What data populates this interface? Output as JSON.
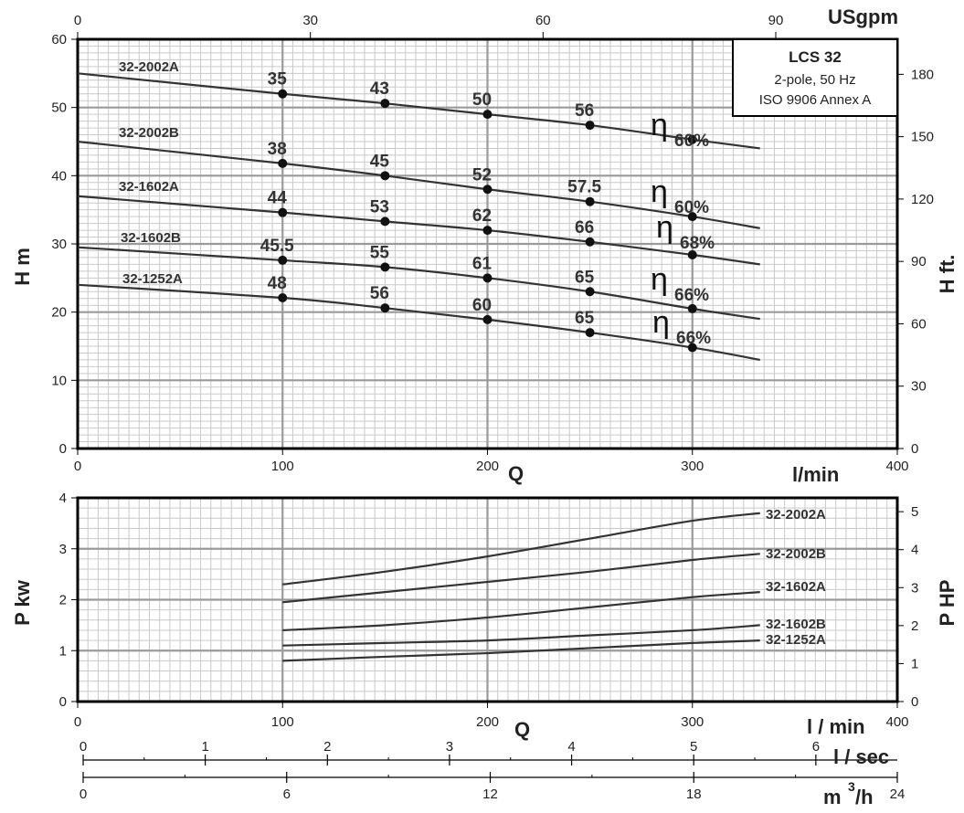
{
  "chart_data": [
    {
      "type": "line",
      "name": "head",
      "xlabel": "Q",
      "xunit": "l/min",
      "ylabel": "H m",
      "ylabel_right": "H ft.",
      "top_axis_unit": "USgpm",
      "xlim": [
        0,
        400
      ],
      "ylim": [
        0,
        60
      ],
      "x_ticks": [
        0,
        100,
        200,
        300,
        400
      ],
      "y_ticks": [
        0,
        10,
        20,
        30,
        40,
        50,
        60
      ],
      "top_ticks": [
        0,
        30,
        60,
        90
      ],
      "right_ticks": [
        0,
        30,
        60,
        90,
        120,
        150,
        180
      ],
      "grid": true,
      "legend": {
        "title": "LCS 32",
        "line1": "2-pole, 50 Hz",
        "line2": "ISO 9906 Annex A",
        "position": "top-right"
      },
      "series": [
        {
          "name": "32-2002A",
          "x": [
            0,
            100,
            150,
            200,
            250,
            300,
            333
          ],
          "y": [
            55,
            52,
            50.6,
            49,
            47.4,
            45.3,
            44
          ],
          "points": [
            [
              100,
              52,
              "35"
            ],
            [
              150,
              50.6,
              "43"
            ],
            [
              200,
              49,
              "50"
            ],
            [
              250,
              47.4,
              "56"
            ],
            [
              300,
              45.3,
              ""
            ]
          ],
          "eta": "60%"
        },
        {
          "name": "32-2002B",
          "x": [
            0,
            100,
            150,
            200,
            250,
            300,
            333
          ],
          "y": [
            45,
            41.8,
            40,
            38,
            36.2,
            34,
            32.3
          ],
          "points": [
            [
              100,
              41.8,
              "38"
            ],
            [
              150,
              40,
              "45"
            ],
            [
              200,
              38,
              "52"
            ],
            [
              250,
              36.2,
              "57.5"
            ],
            [
              300,
              34,
              ""
            ]
          ],
          "eta": "60%"
        },
        {
          "name": "32-1602A",
          "x": [
            0,
            100,
            150,
            200,
            250,
            300,
            333
          ],
          "y": [
            37,
            34.6,
            33.3,
            32,
            30.3,
            28.4,
            27
          ],
          "points": [
            [
              100,
              34.6,
              "44"
            ],
            [
              150,
              33.3,
              "53"
            ],
            [
              200,
              32,
              "62"
            ],
            [
              250,
              30.3,
              "66"
            ],
            [
              300,
              28.4,
              ""
            ]
          ],
          "eta": "68%"
        },
        {
          "name": "32-1602B",
          "x": [
            0,
            100,
            150,
            200,
            250,
            300,
            333
          ],
          "y": [
            29.5,
            27.6,
            26.6,
            25,
            23,
            20.5,
            19
          ],
          "points": [
            [
              100,
              27.6,
              "45.5"
            ],
            [
              150,
              26.6,
              "55"
            ],
            [
              200,
              25,
              "61"
            ],
            [
              250,
              23,
              "65"
            ],
            [
              300,
              20.5,
              ""
            ]
          ],
          "eta": "66%"
        },
        {
          "name": "32-1252A",
          "x": [
            0,
            100,
            150,
            200,
            250,
            300,
            333
          ],
          "y": [
            24,
            22.1,
            20.6,
            18.9,
            17,
            14.8,
            13
          ],
          "points": [
            [
              100,
              22.1,
              "48"
            ],
            [
              150,
              20.6,
              "56"
            ],
            [
              200,
              18.9,
              "60"
            ],
            [
              250,
              17,
              "65"
            ],
            [
              300,
              14.8,
              ""
            ]
          ],
          "eta": "66%"
        }
      ]
    },
    {
      "type": "line",
      "name": "power",
      "xlabel": "Q",
      "xunit": "l / min",
      "ylabel": "P kw",
      "ylabel_right": "P HP",
      "xlim": [
        0,
        400
      ],
      "ylim": [
        0,
        4
      ],
      "x_ticks": [
        0,
        100,
        200,
        300,
        400
      ],
      "y_ticks": [
        0,
        1,
        2,
        3,
        4
      ],
      "right_ticks": [
        0,
        1,
        2,
        3,
        4,
        5
      ],
      "grid": true,
      "series": [
        {
          "name": "32-2002A",
          "x": [
            100,
            150,
            200,
            250,
            300,
            333
          ],
          "y": [
            2.3,
            2.55,
            2.85,
            3.2,
            3.55,
            3.7
          ]
        },
        {
          "name": "32-2002B",
          "x": [
            100,
            150,
            200,
            250,
            300,
            333
          ],
          "y": [
            1.95,
            2.15,
            2.35,
            2.55,
            2.78,
            2.9
          ]
        },
        {
          "name": "32-1602A",
          "x": [
            100,
            150,
            200,
            250,
            300,
            333
          ],
          "y": [
            1.4,
            1.5,
            1.65,
            1.85,
            2.05,
            2.15
          ]
        },
        {
          "name": "32-1602B",
          "x": [
            100,
            150,
            200,
            250,
            300,
            333
          ],
          "y": [
            1.1,
            1.15,
            1.2,
            1.3,
            1.4,
            1.5
          ]
        },
        {
          "name": "32-1252A",
          "x": [
            100,
            150,
            200,
            250,
            300,
            333
          ],
          "y": [
            0.8,
            0.88,
            0.95,
            1.05,
            1.15,
            1.2
          ]
        }
      ]
    }
  ],
  "extra_axes": [
    {
      "unit": "l / sec",
      "ticks": [
        0,
        1,
        2,
        3,
        4,
        5,
        6
      ],
      "max": 6.667
    },
    {
      "unit": "m",
      "unit_sup": "3",
      "unit_tail": "/h",
      "ticks": [
        0,
        6,
        12,
        18,
        24
      ],
      "max": 24
    }
  ]
}
